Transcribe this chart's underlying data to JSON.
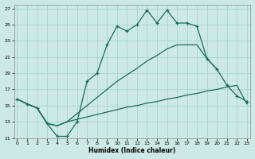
{
  "xlabel": "Humidex (Indice chaleur)",
  "background_color": "#cce9e5",
  "grid_color": "#aad4ce",
  "line_color": "#1a6b5a",
  "x_ticks": [
    0,
    1,
    2,
    3,
    4,
    5,
    6,
    7,
    8,
    9,
    10,
    11,
    12,
    13,
    14,
    15,
    16,
    17,
    18,
    19,
    20,
    21,
    22,
    23
  ],
  "y_ticks": [
    11,
    13,
    15,
    17,
    19,
    21,
    23,
    25,
    27
  ],
  "ylim": [
    11,
    27.5
  ],
  "xlim": [
    -0.3,
    23.3
  ],
  "series1_x": [
    0,
    1,
    2,
    3,
    4,
    5,
    6,
    7,
    8,
    9,
    10,
    11,
    12,
    13,
    14,
    15,
    16,
    17,
    18,
    19,
    20,
    21,
    22,
    23
  ],
  "series1_y": [
    15.8,
    15.2,
    14.7,
    12.8,
    11.2,
    11.2,
    13.0,
    18.0,
    19.0,
    22.5,
    24.8,
    24.2,
    25.0,
    26.8,
    25.2,
    26.8,
    25.2,
    25.2,
    24.8,
    20.8,
    19.5,
    17.5,
    16.2,
    15.5
  ],
  "series2_x": [
    0,
    1,
    2,
    3,
    4,
    5,
    6,
    7,
    8,
    9,
    10,
    11,
    12,
    13,
    14,
    15,
    16,
    17,
    18,
    19,
    20,
    21,
    22,
    23
  ],
  "series2_y": [
    15.8,
    15.2,
    14.7,
    12.8,
    12.5,
    13.0,
    13.3,
    13.6,
    13.9,
    14.2,
    14.5,
    14.8,
    15.0,
    15.3,
    15.5,
    15.8,
    16.0,
    16.3,
    16.5,
    16.8,
    17.0,
    17.3,
    17.5,
    15.2
  ],
  "series3_x": [
    0,
    1,
    2,
    3,
    4,
    5,
    6,
    7,
    8,
    9,
    10,
    11,
    12,
    13,
    14,
    15,
    16,
    17,
    18,
    19,
    20,
    21,
    22,
    23
  ],
  "series3_y": [
    15.8,
    15.2,
    14.7,
    12.8,
    12.5,
    13.0,
    14.0,
    15.0,
    16.0,
    17.0,
    18.0,
    18.8,
    19.6,
    20.5,
    21.2,
    22.0,
    22.5,
    22.5,
    22.5,
    20.8,
    19.5,
    null,
    null,
    null
  ]
}
